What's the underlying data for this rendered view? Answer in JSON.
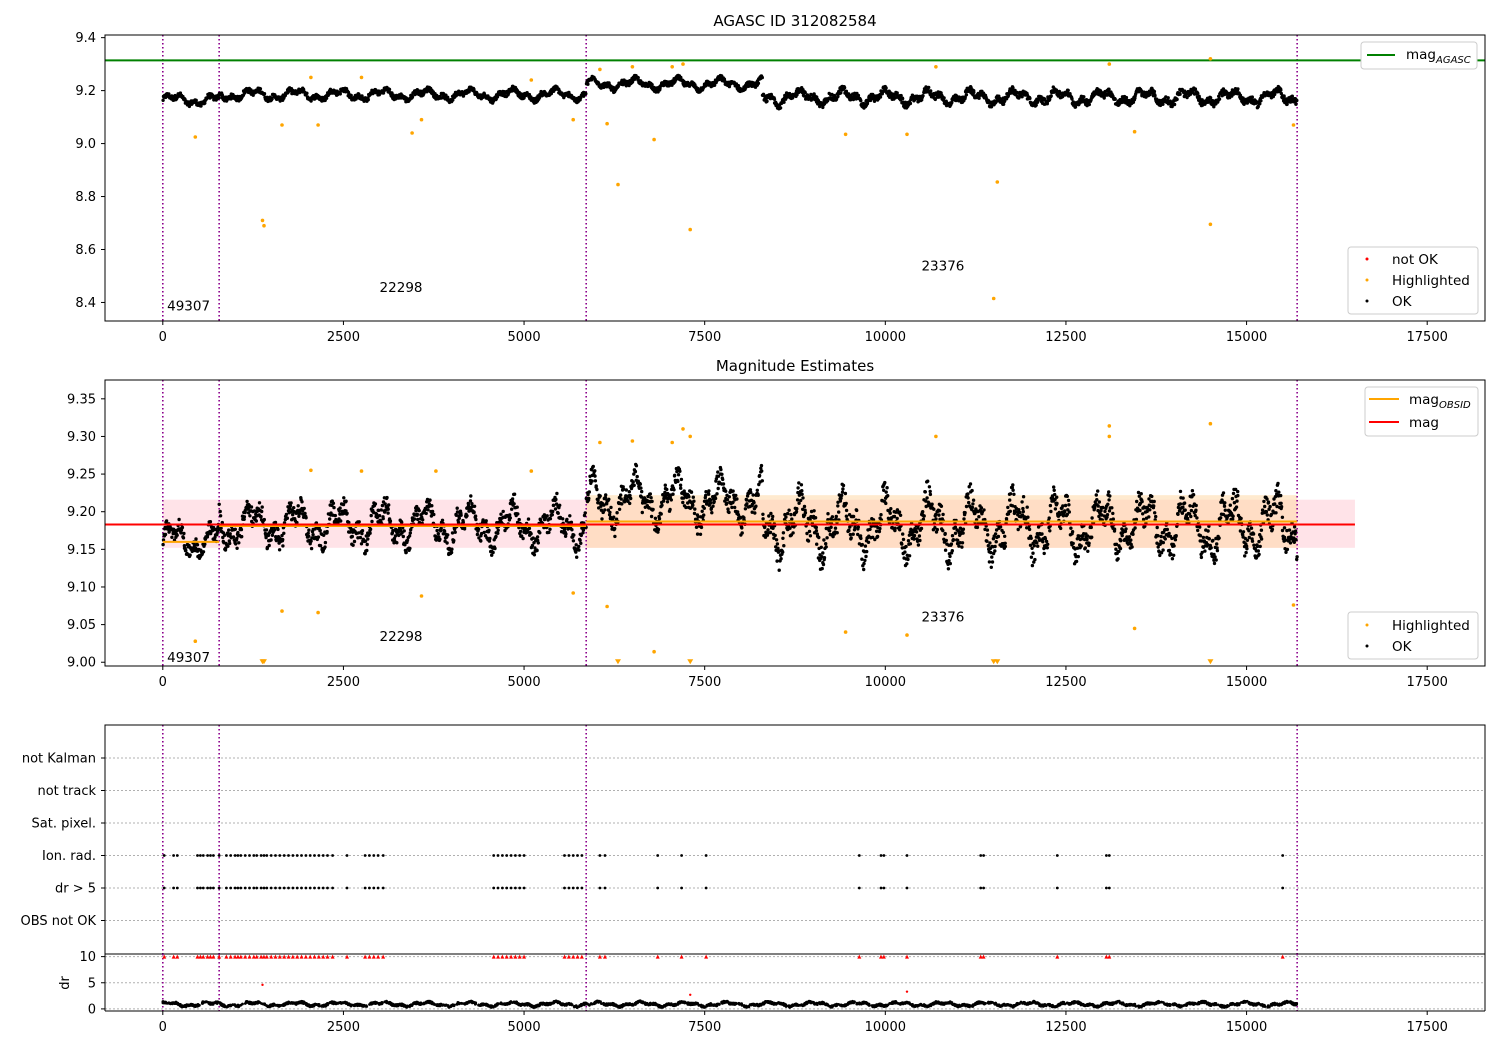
{
  "colors": {
    "ok": "#000000",
    "highlighted": "#ffa500",
    "not_ok": "#ff0000",
    "mag_agasc": "#008000",
    "mag_line": "#ff0000",
    "mag_obsid": "#ffa500",
    "vlines": "#8b008b",
    "band_mag": "#ffc0cb",
    "band_obsid": "#ffd8a8",
    "grid": "#b0b0b0"
  },
  "chart_data": [
    {
      "type": "scatter",
      "title": "AGASC ID 312082584",
      "xlim": [
        -800,
        18300
      ],
      "ylim": [
        8.33,
        9.41
      ],
      "xticks": [
        "0",
        "2500",
        "5000",
        "7500",
        "10000",
        "12500",
        "15000",
        "17500"
      ],
      "yticks": [
        "8.4",
        "8.6",
        "8.8",
        "9.0",
        "9.2",
        "9.4"
      ],
      "obs_boundaries": [
        0,
        780,
        5860,
        15700
      ],
      "obs_labels": [
        {
          "text": "49307",
          "x": 60,
          "y": 8.37
        },
        {
          "text": "22298",
          "x": 3000,
          "y": 8.44
        },
        {
          "text": "23376",
          "x": 10500,
          "y": 8.52
        }
      ],
      "mag_agasc": 9.314,
      "ok_segments": [
        {
          "x": [
            0,
            780
          ],
          "y": 9.165,
          "spread": 0.03
        },
        {
          "x": [
            780,
            5860
          ],
          "y": 9.185,
          "spread": 0.03
        },
        {
          "x": [
            5860,
            8300
          ],
          "y": 9.225,
          "spread": 0.03
        },
        {
          "x": [
            8300,
            15700
          ],
          "y": 9.175,
          "spread": 0.04
        }
      ],
      "highlighted_points": [
        [
          450,
          9.025
        ],
        [
          1380,
          8.71
        ],
        [
          1400,
          8.69
        ],
        [
          1650,
          9.07
        ],
        [
          2050,
          9.25
        ],
        [
          2150,
          9.07
        ],
        [
          2750,
          9.25
        ],
        [
          3450,
          9.04
        ],
        [
          3580,
          9.09
        ],
        [
          5100,
          9.24
        ],
        [
          5680,
          9.09
        ],
        [
          6050,
          9.28
        ],
        [
          6150,
          9.075
        ],
        [
          6300,
          8.845
        ],
        [
          6500,
          9.29
        ],
        [
          6800,
          9.015
        ],
        [
          7050,
          9.29
        ],
        [
          7200,
          9.3
        ],
        [
          7300,
          8.675
        ],
        [
          9450,
          9.035
        ],
        [
          10300,
          9.035
        ],
        [
          10700,
          9.29
        ],
        [
          11500,
          8.415
        ],
        [
          11550,
          8.855
        ],
        [
          13100,
          9.3
        ],
        [
          13450,
          9.045
        ],
        [
          14500,
          8.695
        ],
        [
          14500,
          9.32
        ],
        [
          15650,
          9.07
        ]
      ],
      "not_ok_points": [],
      "legend_upper": [
        {
          "label": "mag",
          "subscript": "AGASC",
          "kind": "line",
          "color": "#008000"
        }
      ],
      "legend_lower": [
        {
          "label": "not OK",
          "kind": "marker",
          "color": "#ff0000"
        },
        {
          "label": "Highlighted",
          "kind": "marker",
          "color": "#ffa500"
        },
        {
          "label": "OK",
          "kind": "marker",
          "color": "#000000"
        }
      ]
    },
    {
      "type": "scatter",
      "title": "Magnitude Estimates",
      "xlim": [
        -800,
        18300
      ],
      "ylim": [
        8.995,
        9.375
      ],
      "xticks": [
        "0",
        "2500",
        "5000",
        "7500",
        "10000",
        "12500",
        "15000",
        "17500"
      ],
      "yticks": [
        "9.00",
        "9.05",
        "9.10",
        "9.15",
        "9.20",
        "9.25",
        "9.30",
        "9.35"
      ],
      "obs_boundaries": [
        0,
        780,
        5860,
        15700
      ],
      "obs_labels": [
        {
          "text": "49307",
          "x": 60,
          "y": 9.0
        },
        {
          "text": "22298",
          "x": 3000,
          "y": 9.028
        },
        {
          "text": "23376",
          "x": 10500,
          "y": 9.054
        }
      ],
      "mag": 9.183,
      "mag_band": [
        9.152,
        9.216
      ],
      "mag_band_x": [
        0,
        16500
      ],
      "mag_obsid": [
        {
          "x": [
            0,
            780
          ],
          "y": 9.16
        },
        {
          "x": [
            780,
            5860
          ],
          "y": 9.181
        },
        {
          "x": [
            5860,
            15700
          ],
          "y": 9.187
        }
      ],
      "mag_obsid_band": {
        "x": [
          5860,
          15700
        ],
        "y": [
          9.152,
          9.222
        ]
      },
      "ok_segments": [
        {
          "x": [
            0,
            780
          ],
          "y": 9.163,
          "spread": 0.03
        },
        {
          "x": [
            780,
            5860
          ],
          "y": 9.183,
          "spread": 0.04
        },
        {
          "x": [
            5860,
            8300
          ],
          "y": 9.215,
          "spread": 0.045
        },
        {
          "x": [
            8300,
            15700
          ],
          "y": 9.182,
          "spread": 0.055
        }
      ],
      "highlighted_points": [
        [
          450,
          9.028
        ],
        [
          1650,
          9.068
        ],
        [
          2050,
          9.255
        ],
        [
          2150,
          9.066
        ],
        [
          2750,
          9.254
        ],
        [
          3580,
          9.088
        ],
        [
          3780,
          9.254
        ],
        [
          5100,
          9.254
        ],
        [
          5680,
          9.092
        ],
        [
          6050,
          9.292
        ],
        [
          6150,
          9.074
        ],
        [
          6500,
          9.294
        ],
        [
          6800,
          9.014
        ],
        [
          7050,
          9.292
        ],
        [
          7200,
          9.31
        ],
        [
          7300,
          9.3
        ],
        [
          9450,
          9.04
        ],
        [
          10300,
          9.036
        ],
        [
          10700,
          9.3
        ],
        [
          13100,
          9.3
        ],
        [
          13100,
          9.314
        ],
        [
          13450,
          9.045
        ],
        [
          14500,
          9.317
        ],
        [
          15650,
          9.076
        ]
      ],
      "clipped_points": [
        [
          1380,
          9.0
        ],
        [
          1400,
          9.0
        ],
        [
          6300,
          9.0
        ],
        [
          7300,
          9.0
        ],
        [
          11500,
          9.0
        ],
        [
          11550,
          9.0
        ],
        [
          14500,
          9.0
        ]
      ],
      "legend_upper": [
        {
          "label": "mag",
          "subscript": "OBSID",
          "kind": "line",
          "color": "#ffa500"
        },
        {
          "label": "mag",
          "subscript": "",
          "kind": "line",
          "color": "#ff0000"
        }
      ],
      "legend_lower": [
        {
          "label": "Highlighted",
          "kind": "marker",
          "color": "#ffa500"
        },
        {
          "label": "OK",
          "kind": "marker",
          "color": "#000000"
        }
      ]
    },
    {
      "type": "scatter",
      "title": "",
      "xlim": [
        -800,
        18300
      ],
      "ylim": [
        -0.5,
        6.5
      ],
      "xticks": [
        "0",
        "2500",
        "5000",
        "7500",
        "10000",
        "12500",
        "15000",
        "17500"
      ],
      "flag_labels": [
        "not Kalman",
        "not track",
        "Sat. pixel.",
        "Ion. rad.",
        "dr > 5",
        "OBS not OK"
      ],
      "obs_boundaries": [
        0,
        780,
        5860,
        15700
      ],
      "flag_events_x": [
        20,
        150,
        200,
        480,
        520,
        560,
        620,
        660,
        700,
        780,
        880,
        940,
        1000,
        1040,
        1080,
        1140,
        1200,
        1260,
        1300,
        1360,
        1400,
        1440,
        1500,
        1560,
        1620,
        1680,
        1740,
        1800,
        1860,
        1920,
        1980,
        2040,
        2100,
        2160,
        2220,
        2280,
        2350,
        2550,
        2800,
        2860,
        2920,
        2980,
        3050,
        4580,
        4640,
        4700,
        4760,
        4820,
        4880,
        4940,
        5000,
        5560,
        5620,
        5680,
        5740,
        5800,
        6050,
        6120,
        6850,
        7180,
        7520,
        9640,
        9940,
        9980,
        10300,
        11320,
        11360,
        12380,
        13060,
        13100,
        15500
      ]
    },
    {
      "type": "scatter",
      "title": "",
      "ylabel": "dr",
      "xlim": [
        -800,
        18300
      ],
      "ylim": [
        -0.4,
        10.5
      ],
      "xticks": [
        "0",
        "2500",
        "5000",
        "7500",
        "10000",
        "12500",
        "15000",
        "17500"
      ],
      "yticks": [
        "0",
        "5",
        "10"
      ],
      "obs_boundaries": [
        0,
        780,
        5860,
        15700
      ],
      "dr_baseline": 0.9,
      "outliers": [
        [
          1380,
          4.6
        ],
        [
          7300,
          2.7
        ],
        [
          10300,
          3.3
        ]
      ],
      "clipped_value": 10
    }
  ]
}
